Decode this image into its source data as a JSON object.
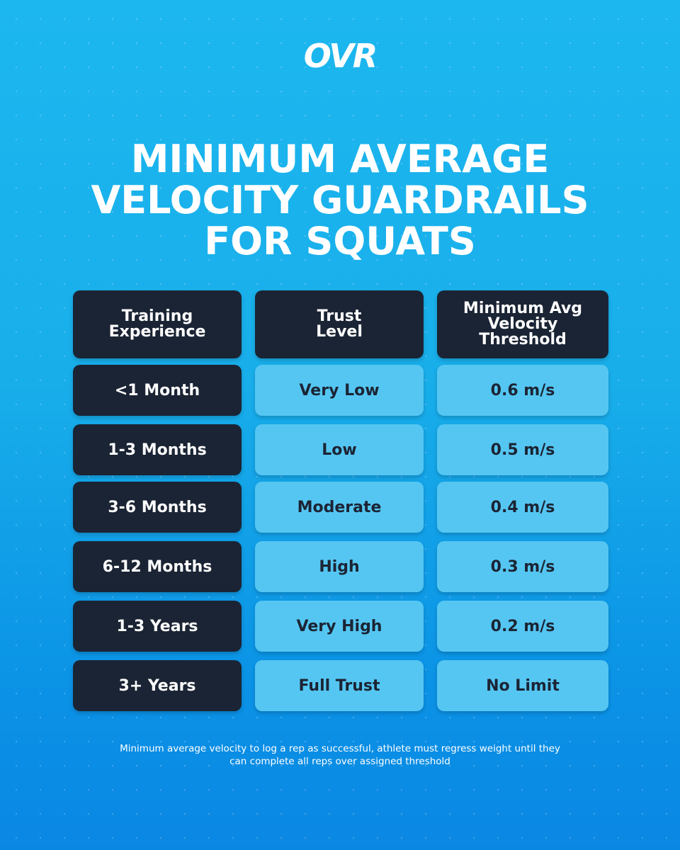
{
  "brand": {
    "logo": "OVR"
  },
  "title": {
    "line1": "MINIMUM AVERAGE",
    "line2": "VELOCITY GUARDRAILS",
    "line3": "FOR SQUATS"
  },
  "table": {
    "headers": {
      "col1_line1": "Training",
      "col1_line2": "Experience",
      "col2_line1": "Trust",
      "col2_line2": "Level",
      "col3_line1": "Minimum Avg",
      "col3_line2": "Velocity",
      "col3_line3": "Threshold"
    },
    "rows": [
      {
        "experience": "<1 Month",
        "trust": "Very Low",
        "threshold": "0.6 m/s"
      },
      {
        "experience": "1-3 Months",
        "trust": "Low",
        "threshold": "0.5 m/s"
      },
      {
        "experience": "3-6 Months",
        "trust": "Moderate",
        "threshold": "0.4 m/s"
      },
      {
        "experience": "6-12 Months",
        "trust": "High",
        "threshold": "0.3 m/s"
      },
      {
        "experience": "1-3 Years",
        "trust": "Very High",
        "threshold": "0.2 m/s"
      },
      {
        "experience": "3+ Years",
        "trust": "Full Trust",
        "threshold": "No Limit"
      }
    ]
  },
  "footnote": {
    "line1": "Minimum average velocity to log a rep as successful, athlete must regress weight until they",
    "line2": "can complete all reps over assigned threshold"
  },
  "colors": {
    "background_top": "#1db7ef",
    "background_bottom": "#0a87e3",
    "dark_cell": "#1b2434",
    "light_cell": "#55c6f2",
    "text_white": "#ffffff"
  }
}
